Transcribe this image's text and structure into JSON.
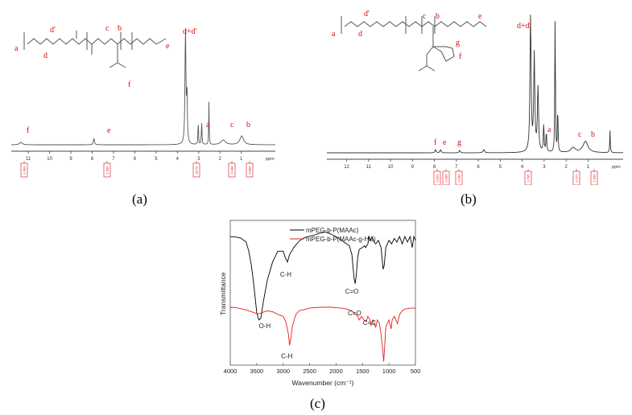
{
  "captions": {
    "a": "(a)",
    "b": "(b)",
    "c": "(c)"
  },
  "panel_a": {
    "axis_unit": "ppm",
    "ticks": [
      "11",
      "10",
      "9",
      "8",
      "7",
      "6",
      "5",
      "4",
      "3",
      "2",
      "1"
    ],
    "peak_labels": [
      "f",
      "e",
      "d+d'",
      "a",
      "c",
      "b"
    ],
    "structure_labels": [
      "a",
      "d",
      "d'",
      "c",
      "b",
      "e",
      "f"
    ],
    "integrals": [
      "1.000",
      "1.000",
      "83.79",
      "0.444",
      "0.836"
    ],
    "colors": {
      "spectrum": "#555555",
      "label": "#d01010",
      "axis": "#444444"
    }
  },
  "panel_b": {
    "axis_unit": "ppm",
    "ticks": [
      "12",
      "11",
      "10",
      "9",
      "8",
      "7",
      "6",
      "5",
      "4",
      "3",
      "2",
      "1"
    ],
    "peak_labels": [
      "f",
      "e",
      "g",
      "d+d'",
      "a",
      "c",
      "b"
    ],
    "structure_labels": [
      "a",
      "d",
      "d'",
      "c",
      "b",
      "e",
      "g",
      "f"
    ],
    "integrals": [
      "0.023",
      "0.030",
      "0.040",
      "1.795",
      "0.177",
      "1.000"
    ],
    "colors": {
      "spectrum": "#333333",
      "label": "#d01010",
      "axis": "#444444"
    }
  },
  "chart_data": [
    {
      "type": "line",
      "panel": "(c)",
      "xlabel": "Wavenumber (cm⁻¹)",
      "ylabel": "Transmittance",
      "xlim": [
        4000,
        500
      ],
      "x_ticks": [
        "4000",
        "3500",
        "3000",
        "2500",
        "2000",
        "1500",
        "1000",
        "500"
      ],
      "legend_position": "top-right",
      "annotations": [
        {
          "text": "C-H",
          "series": 0,
          "x": 2920
        },
        {
          "text": "O-H",
          "series": 0,
          "x": 3440
        },
        {
          "text": "C=O",
          "series": 0,
          "x": 1640
        },
        {
          "text": "C=O",
          "series": 1,
          "x": 1560
        },
        {
          "text": "C=C",
          "series": 1,
          "x": 1430
        },
        {
          "text": "C-H",
          "series": 1,
          "x": 2870
        }
      ],
      "series": [
        {
          "name": "mPEG-b-P(MAAc)",
          "color": "#000000",
          "points": [
            [
              4000,
              0.66
            ],
            [
              3900,
              0.658
            ],
            [
              3800,
              0.652
            ],
            [
              3700,
              0.63
            ],
            [
              3650,
              0.58
            ],
            [
              3600,
              0.5
            ],
            [
              3550,
              0.38
            ],
            [
              3500,
              0.24
            ],
            [
              3460,
              0.2
            ],
            [
              3420,
              0.21
            ],
            [
              3380,
              0.29
            ],
            [
              3300,
              0.42
            ],
            [
              3200,
              0.52
            ],
            [
              3100,
              0.58
            ],
            [
              3000,
              0.58
            ],
            [
              2960,
              0.545
            ],
            [
              2920,
              0.52
            ],
            [
              2880,
              0.56
            ],
            [
              2800,
              0.6
            ],
            [
              2700,
              0.635
            ],
            [
              2600,
              0.655
            ],
            [
              2400,
              0.67
            ],
            [
              2300,
              0.68
            ],
            [
              2200,
              0.685
            ],
            [
              2100,
              0.675
            ],
            [
              2000,
              0.66
            ],
            [
              1900,
              0.64
            ],
            [
              1800,
              0.62
            ],
            [
              1750,
              0.61
            ],
            [
              1700,
              0.56
            ],
            [
              1660,
              0.43
            ],
            [
              1640,
              0.4
            ],
            [
              1620,
              0.44
            ],
            [
              1590,
              0.55
            ],
            [
              1560,
              0.59
            ],
            [
              1500,
              0.6
            ],
            [
              1460,
              0.61
            ],
            [
              1440,
              0.6
            ],
            [
              1400,
              0.62
            ],
            [
              1380,
              0.66
            ],
            [
              1350,
              0.64
            ],
            [
              1320,
              0.66
            ],
            [
              1280,
              0.63
            ],
            [
              1250,
              0.62
            ],
            [
              1200,
              0.64
            ],
            [
              1150,
              0.6
            ],
            [
              1110,
              0.48
            ],
            [
              1090,
              0.5
            ],
            [
              1060,
              0.6
            ],
            [
              1000,
              0.64
            ],
            [
              950,
              0.62
            ],
            [
              900,
              0.65
            ],
            [
              850,
              0.63
            ],
            [
              800,
              0.66
            ],
            [
              750,
              0.62
            ],
            [
              700,
              0.66
            ],
            [
              650,
              0.63
            ],
            [
              600,
              0.66
            ],
            [
              560,
              0.6
            ],
            [
              530,
              0.66
            ],
            [
              500,
              0.64
            ]
          ]
        },
        {
          "name": "mPEG-b-P(MAAc-g-His)",
          "color": "#e02020",
          "points": [
            [
              4000,
              0.27
            ],
            [
              3900,
              0.268
            ],
            [
              3800,
              0.262
            ],
            [
              3700,
              0.255
            ],
            [
              3600,
              0.245
            ],
            [
              3500,
              0.235
            ],
            [
              3440,
              0.235
            ],
            [
              3400,
              0.24
            ],
            [
              3300,
              0.25
            ],
            [
              3200,
              0.245
            ],
            [
              3100,
              0.23
            ],
            [
              3000,
              0.22
            ],
            [
              2950,
              0.19
            ],
            [
              2900,
              0.12
            ],
            [
              2880,
              0.06
            ],
            [
              2860,
              0.09
            ],
            [
              2820,
              0.17
            ],
            [
              2760,
              0.23
            ],
            [
              2700,
              0.25
            ],
            [
              2500,
              0.265
            ],
            [
              2300,
              0.27
            ],
            [
              2100,
              0.27
            ],
            [
              1900,
              0.265
            ],
            [
              1800,
              0.26
            ],
            [
              1700,
              0.25
            ],
            [
              1650,
              0.235
            ],
            [
              1600,
              0.225
            ],
            [
              1560,
              0.2
            ],
            [
              1520,
              0.22
            ],
            [
              1470,
              0.2
            ],
            [
              1430,
              0.19
            ],
            [
              1400,
              0.22
            ],
            [
              1360,
              0.2
            ],
            [
              1340,
              0.17
            ],
            [
              1300,
              0.2
            ],
            [
              1280,
              0.18
            ],
            [
              1250,
              0.16
            ],
            [
              1220,
              0.2
            ],
            [
              1180,
              0.18
            ],
            [
              1150,
              0.12
            ],
            [
              1120,
              0.04
            ],
            [
              1100,
              -0.03
            ],
            [
              1080,
              0.06
            ],
            [
              1060,
              0.16
            ],
            [
              1000,
              0.2
            ],
            [
              960,
              0.15
            ],
            [
              940,
              0.2
            ],
            [
              900,
              0.22
            ],
            [
              840,
              0.18
            ],
            [
              800,
              0.23
            ],
            [
              750,
              0.25
            ],
            [
              700,
              0.26
            ],
            [
              600,
              0.265
            ],
            [
              500,
              0.265
            ]
          ]
        }
      ]
    }
  ]
}
